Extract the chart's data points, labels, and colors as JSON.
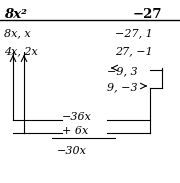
{
  "title_left": "8x²",
  "title_right": "−27",
  "row1_left": "8x, x",
  "row1_right": "−27, 1",
  "row2_left": "4x, 2x",
  "row2_right": "27, −1",
  "row3_right_top": "−9, 3",
  "row3_right_bot": "9, −3",
  "sum_line1": "−36x",
  "sum_line2": "+ 6x",
  "sum_line3": "−30x",
  "bg_color": "#ffffff",
  "text_color": "#000000",
  "font_size": 8.0,
  "title_font_size": 9.5,
  "fig_width": 1.8,
  "fig_height": 1.83,
  "dpi": 100
}
